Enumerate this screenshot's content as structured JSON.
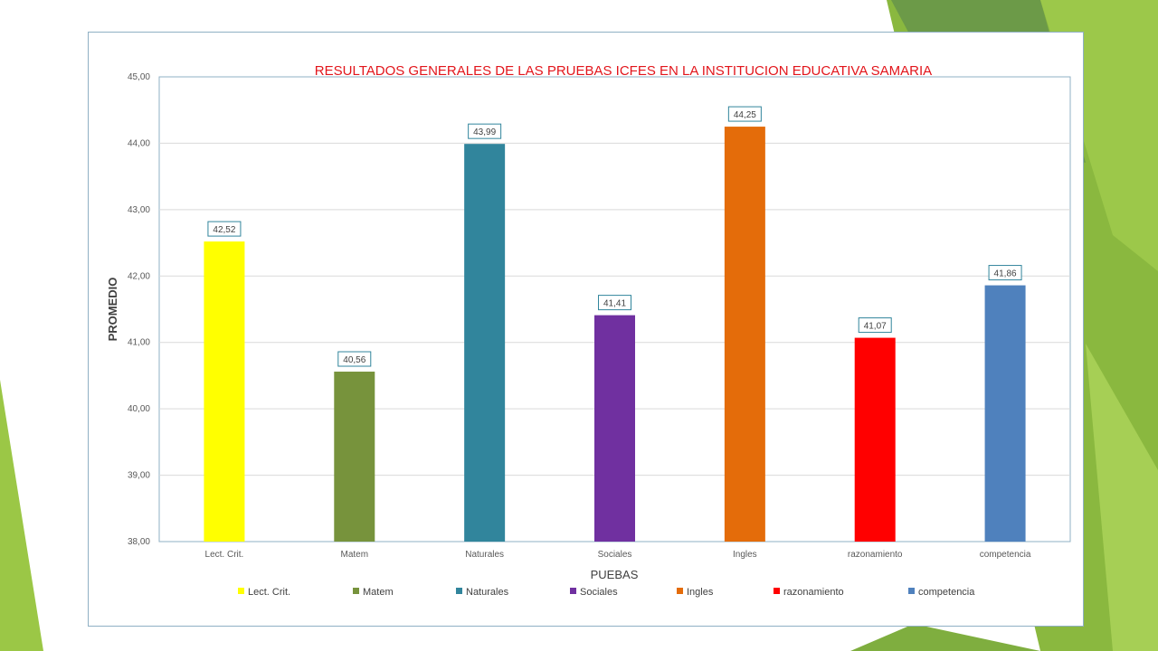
{
  "chart_data": {
    "type": "bar",
    "title": "RESULTADOS GENERALES DE LAS PRUEBAS ICFES EN LA INSTITUCION EDUCATIVA SAMARIA",
    "xlabel": "PUEBAS",
    "ylabel": "PROMEDIO",
    "ylim": [
      38,
      45
    ],
    "yticks": [
      "38,00",
      "39,00",
      "40,00",
      "41,00",
      "42,00",
      "43,00",
      "44,00",
      "45,00"
    ],
    "grid": true,
    "legend_position": "bottom",
    "categories": [
      "Lect. Crit.",
      "Matem",
      "Naturales",
      "Sociales",
      "Ingles",
      "razonamiento",
      "competencia"
    ],
    "values": [
      42.52,
      40.56,
      43.99,
      41.41,
      44.25,
      41.07,
      41.86
    ],
    "data_labels": [
      "42,52",
      "40,56",
      "43,99",
      "41,41",
      "44,25",
      "41,07",
      "41,86"
    ],
    "colors": [
      "#ffff00",
      "#77933c",
      "#31859c",
      "#7030a0",
      "#e46c0a",
      "#ff0000",
      "#4f81bd"
    ]
  },
  "theme": {
    "title_color": "#e2151b",
    "green_dark": "#77a03a",
    "green_light": "#9bc746"
  }
}
